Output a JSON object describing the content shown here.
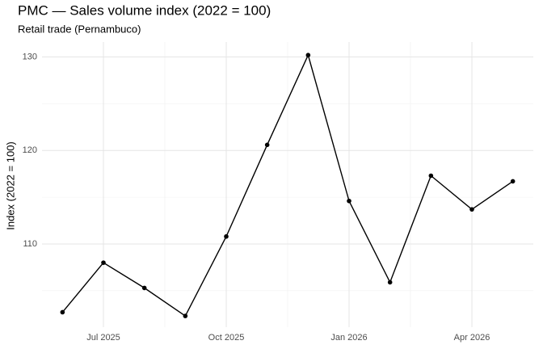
{
  "chart_data": {
    "type": "line",
    "title": "PMC — Sales volume index (2022 = 100)",
    "subtitle": "Retail trade (Pernambuco)",
    "y_label": "Index (2022 = 100)",
    "x": [
      "2025-06",
      "2025-07",
      "2025-08",
      "2025-09",
      "2025-10",
      "2025-11",
      "2025-12",
      "2026-01",
      "2026-02",
      "2026-03",
      "2026-04",
      "2026-05"
    ],
    "series": [
      {
        "name": "Sales volume index",
        "color": "#000000",
        "values": [
          102.7,
          108.0,
          105.3,
          102.3,
          110.8,
          120.6,
          130.2,
          114.6,
          105.9,
          117.3,
          113.7,
          116.7
        ]
      }
    ],
    "xticks": [
      {
        "value": "2025-07",
        "label": "Jul 2025"
      },
      {
        "value": "2025-10",
        "label": "Oct 2025"
      },
      {
        "value": "2026-01",
        "label": "Jan 2026"
      },
      {
        "value": "2026-04",
        "label": "Apr 2026"
      }
    ],
    "ylim": [
      101.1,
      131.6
    ],
    "yticks": [
      110,
      120,
      130
    ],
    "y_minor_ticks": [
      105,
      115,
      125
    ],
    "grid": true
  }
}
